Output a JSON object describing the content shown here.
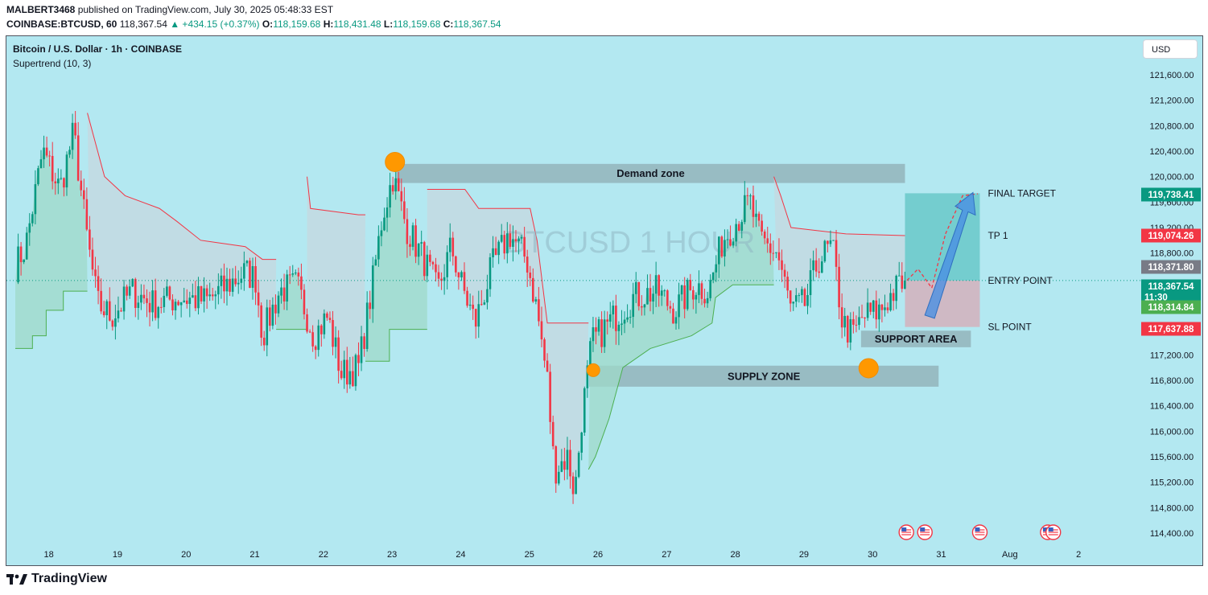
{
  "header": {
    "publisher": "MALBERT3468",
    "published_text": "published on TradingView.com, July 30, 2025 05:48:33 EST",
    "symbol": "COINBASE:BTCUSD, 60",
    "last": "118,367.54",
    "change": "▲ +434.15 (+0.37%)",
    "open_label": "O:",
    "open": "118,159.68",
    "high_label": "H:",
    "high": "118,431.48",
    "low_label": "L:",
    "low": "118,159.68",
    "close_label": "C:",
    "close": "118,367.54"
  },
  "legend": {
    "title": "Bitcoin / U.S. Dollar · 1h · COINBASE",
    "indicator": "Supertrend (10, 3)"
  },
  "currency_button": "USD",
  "footer": {
    "brand": "TradingView"
  },
  "colors": {
    "background": "#b3e8f1",
    "up": "#089981",
    "down": "#f23645",
    "supertrend_up": "#4caf50",
    "supertrend_down": "#f23645"
  },
  "chart_data": {
    "type": "candlestick",
    "watermark": "BTCUSD 1 HOUR",
    "y_range": [
      114200,
      122000
    ],
    "y_ticks": [
      {
        "value": 114400,
        "label": "114,400.00"
      },
      {
        "value": 114800,
        "label": "114,800.00"
      },
      {
        "value": 115200,
        "label": "115,200.00"
      },
      {
        "value": 115600,
        "label": "115,600.00"
      },
      {
        "value": 116000,
        "label": "116,000.00"
      },
      {
        "value": 116400,
        "label": "116,400.00"
      },
      {
        "value": 116800,
        "label": "116,800.00"
      },
      {
        "value": 117200,
        "label": "117,200.00"
      },
      {
        "value": 118800,
        "label": "118,800.00"
      },
      {
        "value": 119200,
        "label": "119,200.00"
      },
      {
        "value": 119600,
        "label": "119,600.00"
      },
      {
        "value": 120000,
        "label": "120,000.00"
      },
      {
        "value": 120400,
        "label": "120,400.00"
      },
      {
        "value": 120800,
        "label": "120,800.00"
      },
      {
        "value": 121200,
        "label": "121,200.00"
      },
      {
        "value": 121600,
        "label": "121,600.00"
      }
    ],
    "x_range": [
      17.5,
      2.85
    ],
    "x_ticks": [
      {
        "t": 18,
        "label": "18"
      },
      {
        "t": 19,
        "label": "19"
      },
      {
        "t": 20,
        "label": "20"
      },
      {
        "t": 21,
        "label": "21"
      },
      {
        "t": 22,
        "label": "22"
      },
      {
        "t": 23,
        "label": "23"
      },
      {
        "t": 24,
        "label": "24"
      },
      {
        "t": 25,
        "label": "25"
      },
      {
        "t": 26,
        "label": "26"
      },
      {
        "t": 27,
        "label": "27"
      },
      {
        "t": 28,
        "label": "28"
      },
      {
        "t": 29,
        "label": "29"
      },
      {
        "t": 30,
        "label": "30"
      },
      {
        "t": 31,
        "label": "31"
      },
      {
        "t": 32,
        "label": "Aug"
      },
      {
        "t": 33,
        "label": "2"
      }
    ],
    "price_tags": [
      {
        "value": 119738.41,
        "label": "119,738.41",
        "color": "#089981"
      },
      {
        "value": 119074.26,
        "label": "119,074.26",
        "color": "#f23645"
      },
      {
        "value": 118371.8,
        "label": "118,371.80",
        "color": "#787b86"
      },
      {
        "value": 118367.54,
        "label": "118,367.54",
        "sub": "11:30",
        "color": "#089981"
      },
      {
        "value": 118314.84,
        "label": "118,314.84",
        "color": "#4caf50"
      },
      {
        "value": 117637.88,
        "label": "117,637.88",
        "color": "#f23645"
      }
    ],
    "last_price": 118367.54,
    "zones": [
      {
        "label": "Demand zone",
        "t_start": 23.05,
        "t_end": 30.46,
        "y_low": 119900,
        "y_high": 120200
      },
      {
        "label": "SUPPLY ZONE",
        "t_start": 25.86,
        "t_end": 30.95,
        "y_low": 116700,
        "y_high": 117030
      },
      {
        "label": "SUPPORT AREA",
        "t_start": 29.82,
        "t_end": 31.42,
        "y_low": 117320,
        "y_high": 117580
      }
    ],
    "trade_box": {
      "t_start": 30.46,
      "t_end": 31.55,
      "final_target": 119738.41,
      "tp1": 119074.26,
      "entry": 118367.54,
      "sl": 117637.88
    },
    "annotations": [
      {
        "label": "FINAL TARGET",
        "value": 119738.41
      },
      {
        "label": "TP 1",
        "value": 119074.26
      },
      {
        "label": "ENTRY POINT",
        "value": 118367.54
      },
      {
        "label": "SL POINT",
        "value": 117637.88
      }
    ],
    "circles": [
      {
        "t": 23.03,
        "value": 120230
      },
      {
        "t": 25.92,
        "value": 116960
      },
      {
        "t": 29.93,
        "value": 116990
      }
    ],
    "event_flags": [
      30.48,
      30.75,
      31.55,
      32.54,
      32.62
    ],
    "projection": [
      [
        30.49,
        118370
      ],
      [
        30.65,
        118550
      ],
      [
        30.85,
        118250
      ],
      [
        31.05,
        119100
      ],
      [
        31.3,
        119700
      ],
      [
        31.52,
        119730
      ]
    ],
    "key_points": [
      [
        17.5,
        118600
      ],
      [
        17.65,
        118900
      ],
      [
        17.9,
        120400
      ],
      [
        18.15,
        119800
      ],
      [
        18.35,
        120700
      ],
      [
        18.55,
        119000
      ],
      [
        18.7,
        118000
      ],
      [
        18.9,
        117800
      ],
      [
        19.2,
        118200
      ],
      [
        19.5,
        118000
      ],
      [
        19.9,
        118100
      ],
      [
        20.3,
        118050
      ],
      [
        20.6,
        118300
      ],
      [
        20.85,
        118500
      ],
      [
        21.0,
        118400
      ],
      [
        21.1,
        117500
      ],
      [
        21.35,
        118200
      ],
      [
        21.6,
        118300
      ],
      [
        21.85,
        117500
      ],
      [
        22.05,
        117800
      ],
      [
        22.25,
        116900
      ],
      [
        22.5,
        117000
      ],
      [
        22.7,
        118300
      ],
      [
        22.85,
        119400
      ],
      [
        23.0,
        120000
      ],
      [
        23.2,
        119200
      ],
      [
        23.45,
        118700
      ],
      [
        23.65,
        118200
      ],
      [
        23.85,
        118900
      ],
      [
        24.0,
        118300
      ],
      [
        24.2,
        117700
      ],
      [
        24.45,
        118600
      ],
      [
        24.7,
        119100
      ],
      [
        24.95,
        118700
      ],
      [
        25.1,
        117900
      ],
      [
        25.25,
        116800
      ],
      [
        25.35,
        115400
      ],
      [
        25.55,
        115600
      ],
      [
        25.65,
        115000
      ],
      [
        25.75,
        116200
      ],
      [
        25.9,
        117400
      ],
      [
        26.15,
        117700
      ],
      [
        26.5,
        118100
      ],
      [
        26.85,
        118200
      ],
      [
        27.1,
        117900
      ],
      [
        27.4,
        118300
      ],
      [
        27.6,
        118200
      ],
      [
        27.8,
        119000
      ],
      [
        28.0,
        119300
      ],
      [
        28.2,
        119600
      ],
      [
        28.35,
        119000
      ],
      [
        28.6,
        118800
      ],
      [
        28.8,
        117900
      ],
      [
        29.0,
        118000
      ],
      [
        29.2,
        118700
      ],
      [
        29.4,
        118900
      ],
      [
        29.55,
        117700
      ],
      [
        29.7,
        117500
      ],
      [
        29.85,
        117800
      ],
      [
        30.1,
        117900
      ],
      [
        30.3,
        118200
      ],
      [
        30.46,
        118367.54
      ]
    ],
    "supertrend": [
      {
        "dir": "up",
        "points": [
          [
            17.5,
            117300
          ],
          [
            17.75,
            117300
          ],
          [
            17.75,
            117500
          ],
          [
            17.95,
            117500
          ],
          [
            17.95,
            117900
          ],
          [
            18.2,
            117900
          ],
          [
            18.2,
            118200
          ],
          [
            18.55,
            118200
          ]
        ]
      },
      {
        "dir": "down",
        "points": [
          [
            18.55,
            121000
          ],
          [
            18.8,
            120000
          ],
          [
            19.1,
            119700
          ],
          [
            19.6,
            119500
          ],
          [
            19.85,
            119300
          ],
          [
            20.2,
            119000
          ],
          [
            20.85,
            118900
          ],
          [
            21.1,
            118700
          ],
          [
            21.3,
            118700
          ]
        ]
      },
      {
        "dir": "up",
        "points": [
          [
            21.3,
            117600
          ],
          [
            21.75,
            117600
          ],
          [
            21.75,
            117700
          ]
        ]
      },
      {
        "dir": "down",
        "points": [
          [
            21.75,
            120000
          ],
          [
            21.8,
            119500
          ],
          [
            22.5,
            119400
          ],
          [
            22.6,
            119400
          ]
        ]
      },
      {
        "dir": "up",
        "points": [
          [
            22.6,
            117100
          ],
          [
            22.95,
            117100
          ],
          [
            22.95,
            117600
          ],
          [
            23.5,
            117600
          ]
        ]
      },
      {
        "dir": "down",
        "points": [
          [
            23.5,
            119800
          ],
          [
            24.05,
            119800
          ],
          [
            24.25,
            119500
          ],
          [
            25.0,
            119500
          ],
          [
            25.1,
            119000
          ],
          [
            25.25,
            117700
          ],
          [
            25.85,
            117700
          ]
        ]
      },
      {
        "dir": "up",
        "points": [
          [
            25.85,
            115400
          ],
          [
            25.95,
            115600
          ],
          [
            26.15,
            116200
          ],
          [
            26.35,
            117000
          ],
          [
            26.75,
            117300
          ],
          [
            27.35,
            117500
          ],
          [
            27.65,
            117700
          ],
          [
            27.7,
            118100
          ],
          [
            27.95,
            118300
          ],
          [
            28.55,
            118300
          ]
        ]
      },
      {
        "dir": "down",
        "points": [
          [
            28.55,
            120000
          ],
          [
            28.65,
            119700
          ],
          [
            28.8,
            119200
          ],
          [
            29.6,
            119100
          ],
          [
            30.46,
            119074.26
          ]
        ]
      }
    ]
  }
}
